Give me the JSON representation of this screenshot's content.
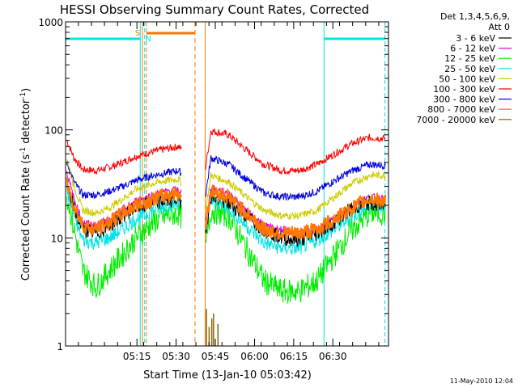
{
  "chart_data": {
    "type": "line",
    "title": "HESSI Observing Summary Count Rates, Corrected",
    "xlabel": "Start Time (13-Jan-10 05:03:42)",
    "ylabel": "Corrected Count Rate (s",
    "ylabel_sup1": "-1",
    "ylabel_mid": " detector",
    "ylabel_sup2": "-1",
    "ylabel_end": ")",
    "yscale": "log",
    "ylim": [
      1,
      1000
    ],
    "y_ticks": [
      {
        "value": 1,
        "label": "1"
      },
      {
        "value": 10,
        "label": "10"
      },
      {
        "value": 100,
        "label": "100"
      },
      {
        "value": 1000,
        "label": "1000"
      }
    ],
    "xlim_minutes": [
      5.05,
      41.6
    ],
    "x_ticks": [
      {
        "t": 13.13,
        "label": "05:15"
      },
      {
        "t": 17.56,
        "label": "05:30"
      },
      {
        "t": 22.0,
        "label": "05:45"
      },
      {
        "t": 26.44,
        "label": "06:00"
      },
      {
        "t": 30.87,
        "label": "06:15"
      },
      {
        "t": 35.3,
        "label": "06:30"
      }
    ],
    "legend_header": [
      "Det 1,3,4,5,6,9,",
      "Att 0"
    ],
    "series": [
      {
        "name": "3 - 6 keV",
        "color": "#000000",
        "values": [
          30,
          19,
          12,
          11,
          13,
          16,
          19,
          21,
          22,
          23,
          12,
          24,
          21,
          16,
          12,
          10,
          9.5,
          11,
          14,
          19,
          21,
          20
        ]
      },
      {
        "name": "6 - 12 keV",
        "color": "#dd00dd",
        "values": [
          40,
          23,
          14,
          13,
          15,
          18,
          22,
          25,
          27,
          28,
          14,
          29,
          26,
          18,
          13,
          12,
          11,
          12,
          15,
          20,
          24,
          23
        ]
      },
      {
        "name": "12 - 25 keV",
        "color": "#00ee00",
        "values": [
          25,
          12,
          5,
          3.5,
          5,
          7,
          10,
          14,
          16,
          17,
          8,
          18,
          16,
          8,
          4,
          3.2,
          3.2,
          4,
          7,
          12,
          17,
          17
        ]
      },
      {
        "name": "25 - 50 keV",
        "color": "#00e5e5",
        "values": [
          28,
          16,
          9.5,
          9,
          10,
          12,
          15,
          18,
          20,
          21,
          11,
          22,
          19,
          13,
          9,
          8,
          8,
          9.5,
          12,
          16,
          20,
          20
        ]
      },
      {
        "name": "50 - 100 keV",
        "color": "#cccc00",
        "values": [
          55,
          30,
          18,
          17,
          19,
          23,
          28,
          32,
          34,
          35,
          18,
          38,
          33,
          24,
          18,
          16,
          16,
          18,
          24,
          32,
          38,
          38
        ]
      },
      {
        "name": "100 - 300 keV",
        "color": "#ff0000",
        "values": [
          80,
          55,
          43,
          42,
          45,
          50,
          57,
          63,
          67,
          70,
          45,
          98,
          90,
          65,
          48,
          42,
          42,
          48,
          60,
          75,
          85,
          83
        ]
      },
      {
        "name": "300 - 800 keV",
        "color": "#0000dd",
        "values": [
          50,
          33,
          25,
          25,
          27,
          30,
          34,
          38,
          40,
          42,
          25,
          55,
          48,
          35,
          26,
          24,
          24,
          27,
          34,
          42,
          48,
          47
        ]
      },
      {
        "name": "800 - 7000 keV",
        "color": "#ff7700",
        "values": [
          32,
          20,
          13,
          12,
          14,
          17,
          20,
          23,
          25,
          26,
          13,
          27,
          24,
          17,
          12,
          11,
          11,
          12,
          15,
          19,
          23,
          22
        ]
      },
      {
        "name": "7000 - 20000 keV",
        "color": "#886600",
        "values": []
      }
    ],
    "annotations": {
      "s_label": "S",
      "n_label": "N"
    },
    "footer": "11-May-2010 12:04"
  }
}
